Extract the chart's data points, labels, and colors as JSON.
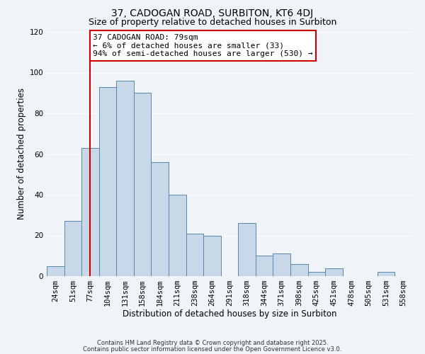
{
  "title": "37, CADOGAN ROAD, SURBITON, KT6 4DJ",
  "subtitle": "Size of property relative to detached houses in Surbiton",
  "xlabel": "Distribution of detached houses by size in Surbiton",
  "ylabel": "Number of detached properties",
  "bins": [
    "24sqm",
    "51sqm",
    "77sqm",
    "104sqm",
    "131sqm",
    "158sqm",
    "184sqm",
    "211sqm",
    "238sqm",
    "264sqm",
    "291sqm",
    "318sqm",
    "344sqm",
    "371sqm",
    "398sqm",
    "425sqm",
    "451sqm",
    "478sqm",
    "505sqm",
    "531sqm",
    "558sqm"
  ],
  "values": [
    5,
    27,
    63,
    93,
    96,
    90,
    56,
    40,
    21,
    20,
    0,
    26,
    10,
    11,
    6,
    2,
    4,
    0,
    0,
    2,
    0
  ],
  "bar_color": "#c8d8e8",
  "bar_edge_color": "#5588aa",
  "vline_x": 2,
  "vline_color": "#cc0000",
  "annotation_title": "37 CADOGAN ROAD: 79sqm",
  "annotation_line1": "← 6% of detached houses are smaller (33)",
  "annotation_line2": "94% of semi-detached houses are larger (530) →",
  "annotation_box_color": "#ffffff",
  "annotation_border_color": "#cc0000",
  "ylim": [
    0,
    120
  ],
  "yticks": [
    0,
    20,
    40,
    60,
    80,
    100,
    120
  ],
  "background_color": "#f0f4f8",
  "footer1": "Contains HM Land Registry data © Crown copyright and database right 2025.",
  "footer2": "Contains public sector information licensed under the Open Government Licence v3.0.",
  "title_fontsize": 10,
  "subtitle_fontsize": 9,
  "axis_label_fontsize": 8.5,
  "tick_fontsize": 7.5,
  "annotation_fontsize": 8,
  "footer_fontsize": 6
}
